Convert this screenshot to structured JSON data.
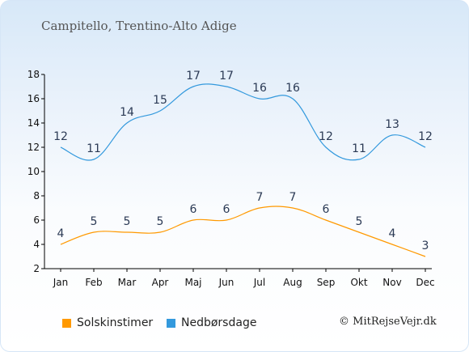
{
  "colors": {
    "sun": "#ff9900",
    "rain": "#3399dd",
    "axis": "#000000"
  },
  "chart_data": {
    "type": "line",
    "title": "Campitello, Trentino-Alto Adige",
    "categories": [
      "Jan",
      "Feb",
      "Mar",
      "Apr",
      "Maj",
      "Jun",
      "Jul",
      "Aug",
      "Sep",
      "Okt",
      "Nov",
      "Dec"
    ],
    "series": [
      {
        "name": "Solskinstimer",
        "color": "#ff9900",
        "values": [
          4,
          5,
          5,
          5,
          6,
          6,
          7,
          7,
          6,
          5,
          4,
          3
        ]
      },
      {
        "name": "Nedbørsdage",
        "color": "#3399dd",
        "values": [
          12,
          11,
          14,
          15,
          17,
          17,
          16,
          16,
          12,
          11,
          13,
          12
        ]
      }
    ],
    "yticks": [
      2,
      4,
      6,
      8,
      10,
      12,
      14,
      16,
      18
    ],
    "ylim": [
      2,
      18
    ],
    "grid": false,
    "legend": "bottom-left"
  },
  "legend": {
    "sun_label": "Solskinstimer",
    "rain_label": "Nedbørsdage"
  },
  "credit": "© MitRejseVejr.dk"
}
